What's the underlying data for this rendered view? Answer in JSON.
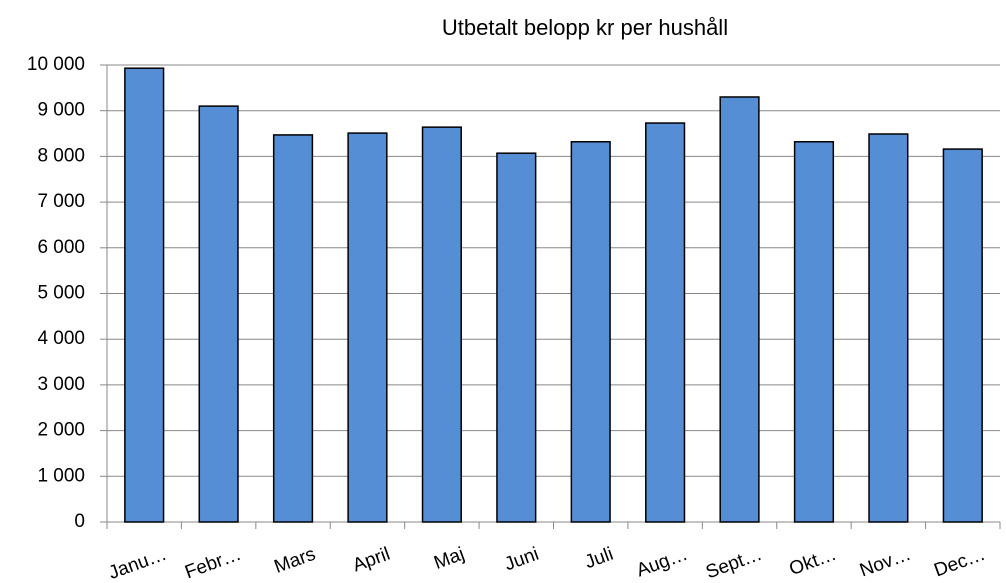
{
  "chart_data": {
    "type": "bar",
    "title": "Utbetalt belopp kr per hushåll",
    "categories": [
      "Janu…",
      "Febr…",
      "Mars",
      "April",
      "Maj",
      "Juni",
      "Juli",
      "Aug…",
      "Sept…",
      "Okt…",
      "Nov…",
      "Dec…"
    ],
    "values": [
      9930,
      9100,
      8470,
      8510,
      8640,
      8070,
      8320,
      8730,
      9300,
      8320,
      8490,
      8160
    ],
    "color": "#558ed5",
    "ylim": [
      0,
      10000
    ],
    "yticks": [
      0,
      {
        "value": 1000,
        "label": "1 000"
      },
      {
        "value": 2000,
        "label": "2 000"
      },
      {
        "value": 3000,
        "label": "3 000"
      },
      {
        "value": 4000,
        "label": "4 000"
      },
      {
        "value": 5000,
        "label": "5 000"
      },
      {
        "value": 6000,
        "label": "6 000"
      },
      {
        "value": 7000,
        "label": "7 000"
      },
      {
        "value": 8000,
        "label": "8 000"
      },
      {
        "value": 9000,
        "label": "9 000"
      },
      {
        "value": 10000,
        "label": "10 000"
      }
    ],
    "grid": true
  }
}
